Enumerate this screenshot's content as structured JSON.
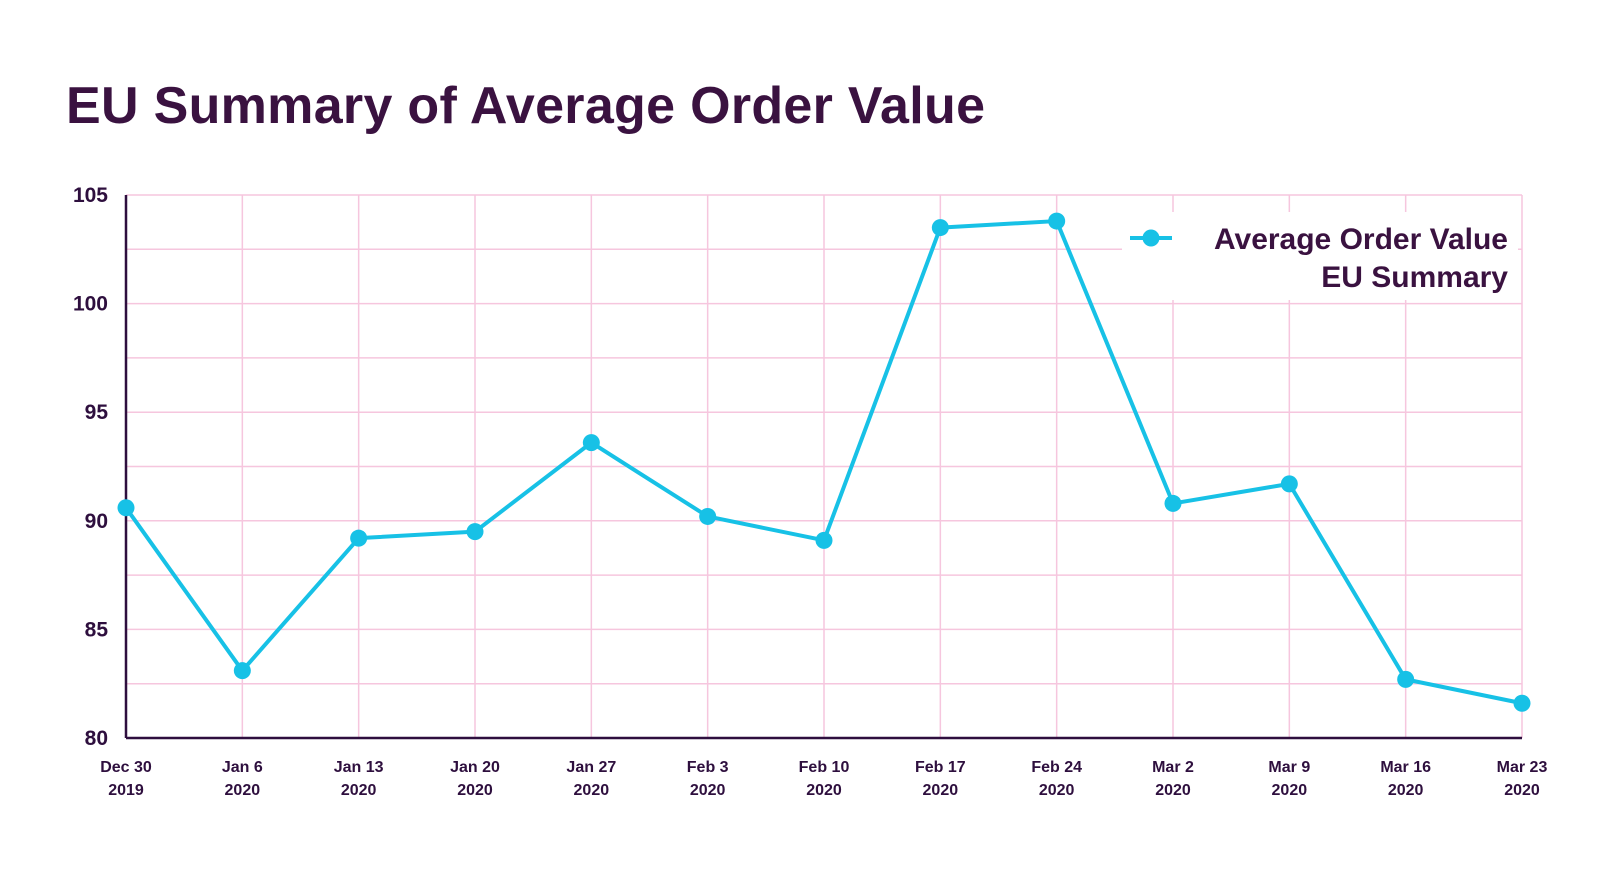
{
  "title": "EU Summary of Average Order Value",
  "colors": {
    "line": "#17c1e6",
    "grid": "#f6c6de",
    "axis": "#2e0f3e",
    "text": "#2e0f3e"
  },
  "chart_data": {
    "type": "line",
    "title": "EU Summary of Average Order Value",
    "xlabel": "",
    "ylabel": "",
    "ylim": [
      80,
      105
    ],
    "yticks": [
      80,
      85,
      90,
      95,
      100,
      105
    ],
    "grid": true,
    "legend_position": "top-right",
    "categories": [
      [
        "Dec 30",
        "2019"
      ],
      [
        "Jan 6",
        "2020"
      ],
      [
        "Jan 13",
        "2020"
      ],
      [
        "Jan 20",
        "2020"
      ],
      [
        "Jan 27",
        "2020"
      ],
      [
        "Feb 3",
        "2020"
      ],
      [
        "Feb 10",
        "2020"
      ],
      [
        "Feb 17",
        "2020"
      ],
      [
        "Feb 24",
        "2020"
      ],
      [
        "Mar 2",
        "2020"
      ],
      [
        "Mar 9",
        "2020"
      ],
      [
        "Mar 16",
        "2020"
      ],
      [
        "Mar 23",
        "2020"
      ]
    ],
    "series": [
      {
        "name": "Average Order Value EU Summary",
        "legend_lines": [
          "Average Order Value",
          "EU Summary"
        ],
        "values": [
          90.6,
          83.1,
          89.2,
          89.5,
          93.6,
          90.2,
          89.1,
          103.5,
          103.8,
          90.8,
          91.7,
          82.7,
          81.6
        ]
      }
    ]
  }
}
